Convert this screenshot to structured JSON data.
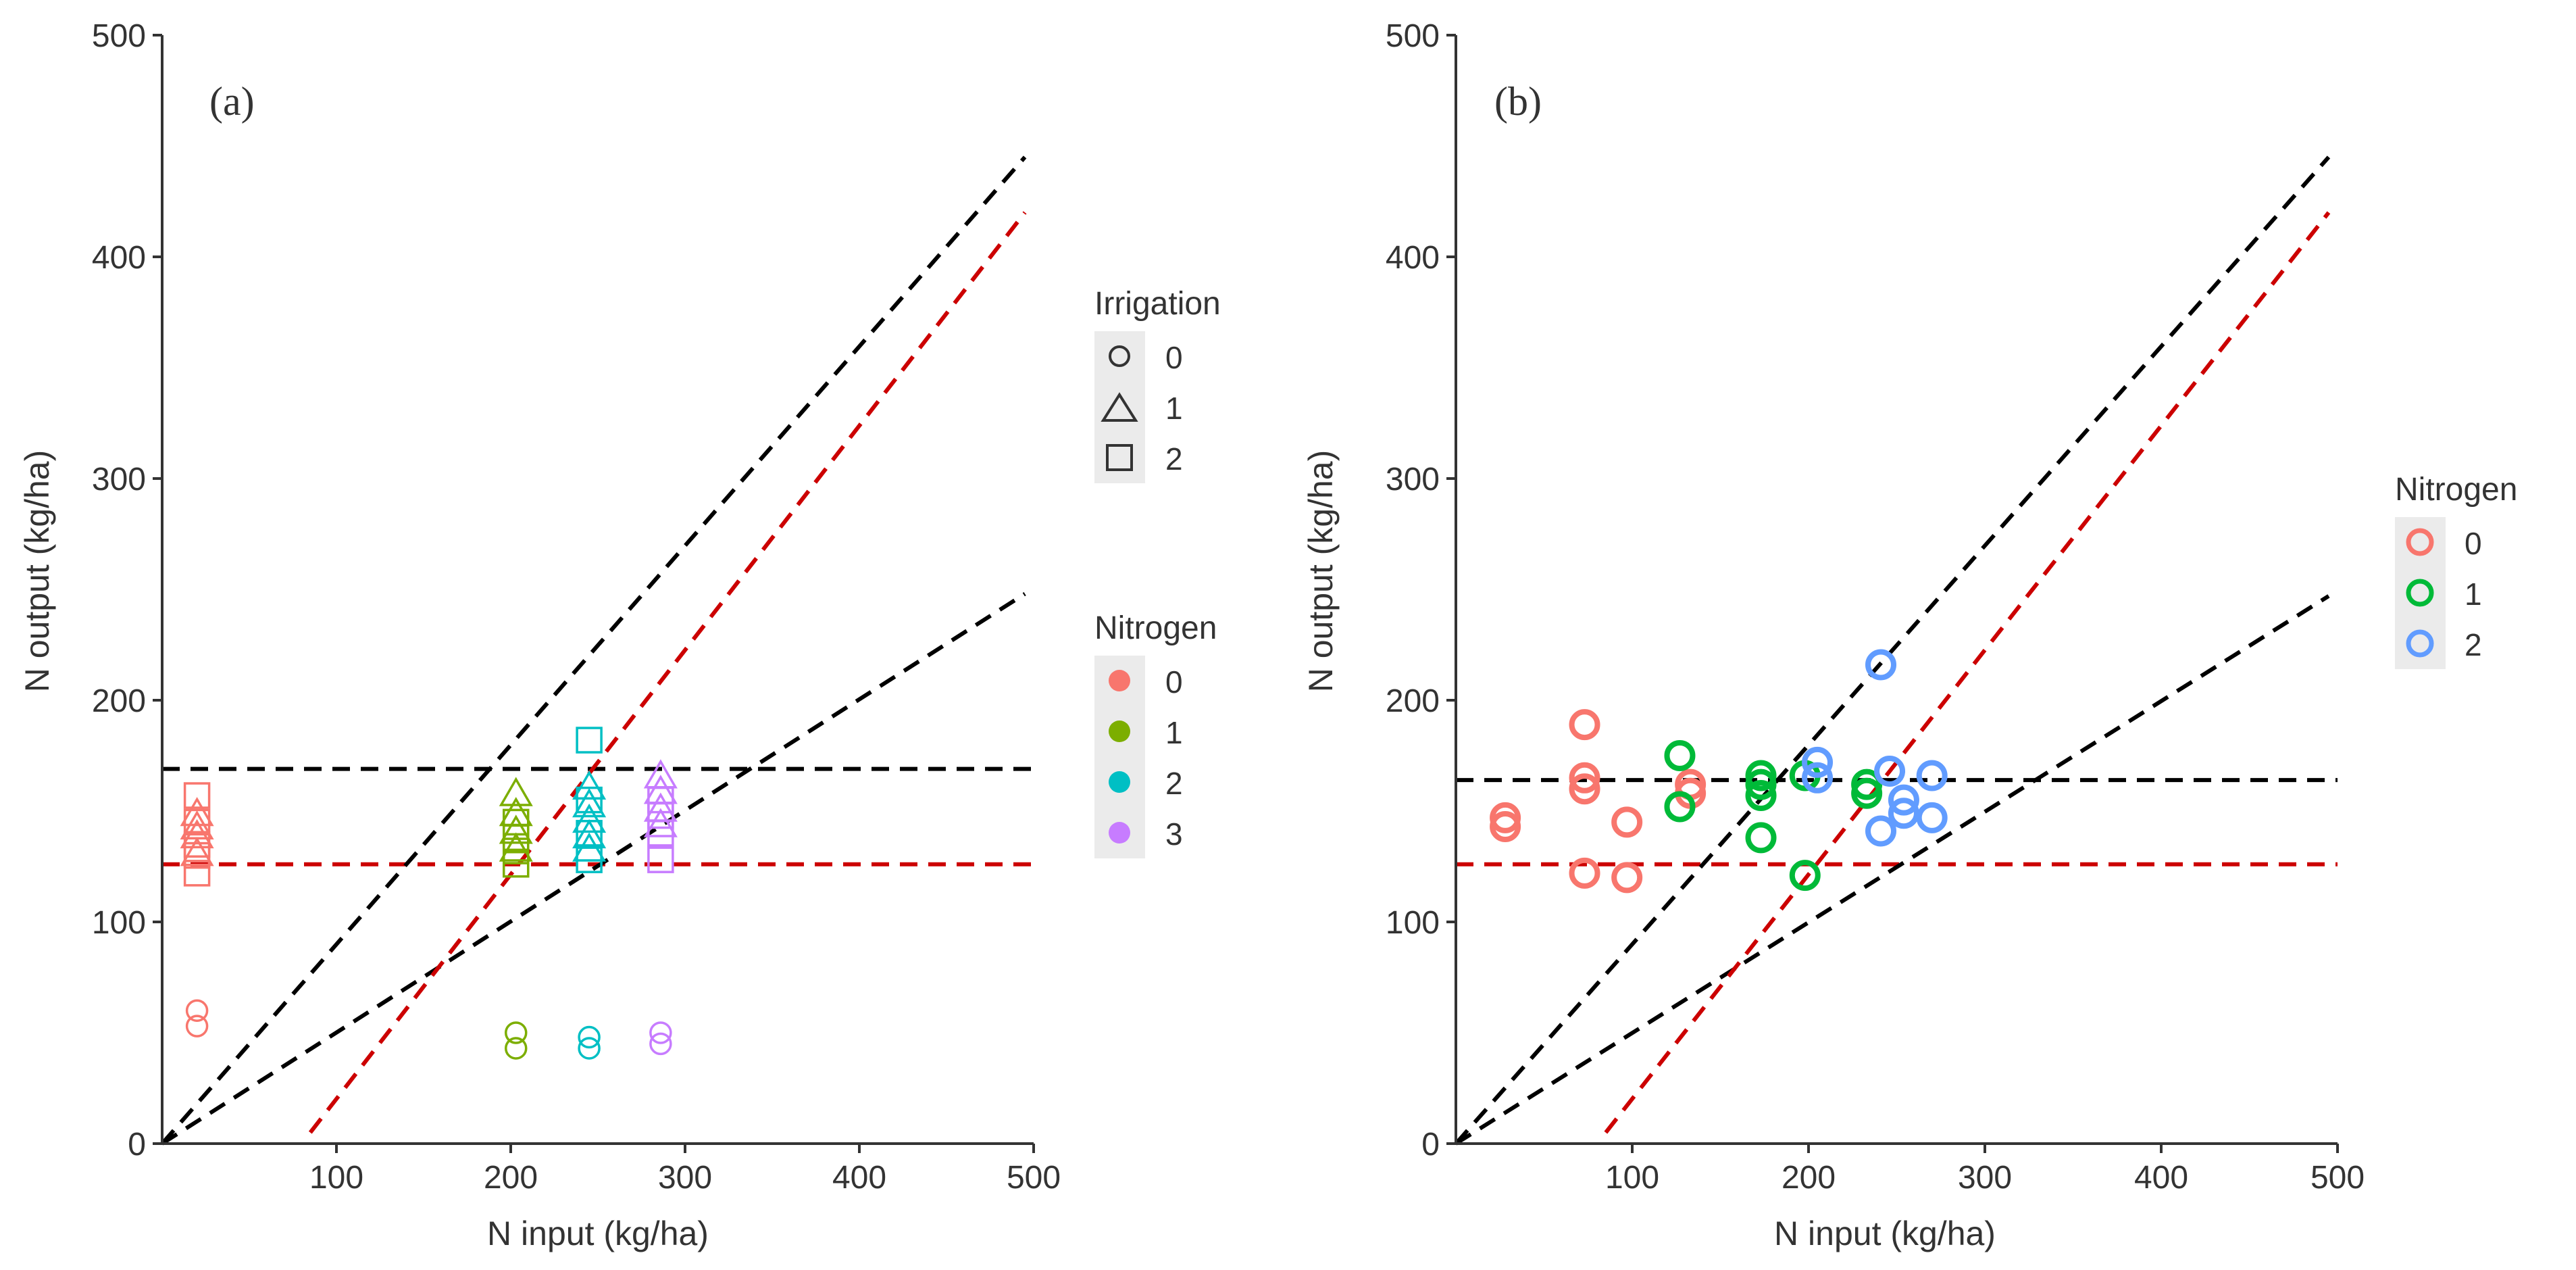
{
  "colors": {
    "n0": "#F8766D",
    "n1_a": "#7CAE00",
    "n2_a": "#00BFC4",
    "n3_a": "#C77CFF",
    "n1_b": "#00BA38",
    "n2_b": "#619CFF",
    "ref_black": "#000000",
    "ref_red": "#CC0000",
    "legend_key_bg": "#EBEBEB"
  },
  "chart_data": [
    {
      "type": "scatter",
      "panel_label": "(a)",
      "xlabel": "N input (kg/ha)",
      "ylabel": "N output (kg/ha)",
      "xlim": [
        0,
        500
      ],
      "ylim": [
        0,
        500
      ],
      "x_ticks": [
        100,
        200,
        300,
        400,
        500
      ],
      "x_tick_labels": [
        "100",
        "200",
        "300",
        "400",
        "500"
      ],
      "y_ticks": [
        0,
        100,
        200,
        300,
        400,
        500
      ],
      "y_tick_labels": [
        "0",
        "100",
        "200",
        "300",
        "400",
        "500"
      ],
      "grid": false,
      "legends": [
        {
          "title": "Irrigation",
          "entries": [
            {
              "label": "0",
              "shape": "circle"
            },
            {
              "label": "1",
              "shape": "triangle"
            },
            {
              "label": "2",
              "shape": "square"
            }
          ]
        },
        {
          "title": "Nitrogen",
          "entries": [
            {
              "label": "0",
              "color_key": "n0"
            },
            {
              "label": "1",
              "color_key": "n1_a"
            },
            {
              "label": "2",
              "color_key": "n2_a"
            },
            {
              "label": "3",
              "color_key": "n3_a"
            }
          ]
        }
      ],
      "series": [
        {
          "name": "N0 I0",
          "color_key": "n0",
          "shape": "circle",
          "points": [
            [
              20,
              60
            ],
            [
              20,
              53
            ]
          ]
        },
        {
          "name": "N0 I1",
          "color_key": "n0",
          "shape": "triangle",
          "points": [
            [
              20,
              148
            ],
            [
              20,
              142
            ],
            [
              20,
              138
            ],
            [
              20,
              130
            ]
          ]
        },
        {
          "name": "N0 I2",
          "color_key": "n0",
          "shape": "square",
          "points": [
            [
              20,
              157
            ],
            [
              20,
              145
            ],
            [
              20,
              135
            ],
            [
              20,
              130
            ],
            [
              20,
              122
            ]
          ]
        },
        {
          "name": "N1 I0",
          "color_key": "n1_a",
          "shape": "circle",
          "points": [
            [
              203,
              50
            ],
            [
              203,
              43
            ]
          ]
        },
        {
          "name": "N1 I1",
          "color_key": "n1_a",
          "shape": "triangle",
          "points": [
            [
              203,
              157
            ],
            [
              203,
              148
            ],
            [
              203,
              140
            ],
            [
              203,
              132
            ]
          ]
        },
        {
          "name": "N1 I2",
          "color_key": "n1_a",
          "shape": "square",
          "points": [
            [
              203,
              145
            ],
            [
              203,
              138
            ],
            [
              203,
              132
            ],
            [
              203,
              126
            ]
          ]
        },
        {
          "name": "N2 I0",
          "color_key": "n2_a",
          "shape": "circle",
          "points": [
            [
              245,
              48
            ],
            [
              245,
              43
            ]
          ]
        },
        {
          "name": "N2 I1",
          "color_key": "n2_a",
          "shape": "triangle",
          "points": [
            [
              245,
              160
            ],
            [
              245,
              152
            ],
            [
              245,
              145
            ],
            [
              245,
              138
            ],
            [
              245,
              132
            ]
          ]
        },
        {
          "name": "N2 I2",
          "color_key": "n2_a",
          "shape": "square",
          "points": [
            [
              245,
              182
            ],
            [
              245,
              155
            ],
            [
              245,
              140
            ],
            [
              245,
              128
            ]
          ]
        },
        {
          "name": "N3 I0",
          "color_key": "n3_a",
          "shape": "circle",
          "points": [
            [
              286,
              50
            ],
            [
              286,
              45
            ]
          ]
        },
        {
          "name": "N3 I1",
          "color_key": "n3_a",
          "shape": "triangle",
          "points": [
            [
              286,
              165
            ],
            [
              286,
              158
            ],
            [
              286,
              150
            ],
            [
              286,
              143
            ]
          ]
        },
        {
          "name": "N3 I2",
          "color_key": "n3_a",
          "shape": "square",
          "points": [
            [
              286,
              155
            ],
            [
              286,
              148
            ],
            [
              286,
              140
            ],
            [
              286,
              128
            ]
          ]
        }
      ],
      "reference_lines": [
        {
          "name": "horizontal-black",
          "color_key": "ref_black",
          "from": [
            0,
            169
          ],
          "to": [
            500,
            169
          ]
        },
        {
          "name": "horizontal-red",
          "color_key": "ref_red",
          "from": [
            0,
            126
          ],
          "to": [
            500,
            126
          ]
        },
        {
          "name": "diagonal-black-steep",
          "color_key": "ref_black",
          "from": [
            0,
            0
          ],
          "to": [
            495,
            445
          ]
        },
        {
          "name": "diagonal-black-shallow",
          "color_key": "ref_black",
          "from": [
            0,
            0
          ],
          "to": [
            495,
            248
          ]
        },
        {
          "name": "diagonal-red",
          "color_key": "ref_red",
          "from": [
            85,
            5
          ],
          "to": [
            495,
            420
          ]
        }
      ]
    },
    {
      "type": "scatter",
      "panel_label": "(b)",
      "xlabel": "N input (kg/ha)",
      "ylabel": "N output (kg/ha)",
      "xlim": [
        0,
        500
      ],
      "ylim": [
        0,
        500
      ],
      "x_ticks": [
        100,
        200,
        300,
        400,
        500
      ],
      "x_tick_labels": [
        "100",
        "200",
        "300",
        "400",
        "500"
      ],
      "y_ticks": [
        0,
        100,
        200,
        300,
        400,
        500
      ],
      "y_tick_labels": [
        "0",
        "100",
        "200",
        "300",
        "400",
        "500"
      ],
      "grid": false,
      "legends": [
        {
          "title": "Nitrogen",
          "entries": [
            {
              "label": "0",
              "color_key": "n0"
            },
            {
              "label": "1",
              "color_key": "n1_b"
            },
            {
              "label": "2",
              "color_key": "n2_b"
            }
          ]
        }
      ],
      "series": [
        {
          "name": "N0",
          "color_key": "n0",
          "shape": "circle",
          "points": [
            [
              28,
              147
            ],
            [
              28,
              143
            ],
            [
              73,
              189
            ],
            [
              73,
              165
            ],
            [
              73,
              160
            ],
            [
              73,
              122
            ],
            [
              97,
              145
            ],
            [
              97,
              120
            ],
            [
              133,
              162
            ],
            [
              133,
              158
            ]
          ]
        },
        {
          "name": "N1",
          "color_key": "n1_b",
          "shape": "circle",
          "points": [
            [
              127,
              175
            ],
            [
              127,
              152
            ],
            [
              173,
              166
            ],
            [
              173,
              162
            ],
            [
              173,
              157
            ],
            [
              173,
              138
            ],
            [
              198,
              121
            ],
            [
              198,
              166
            ],
            [
              233,
              162
            ],
            [
              233,
              158
            ]
          ]
        },
        {
          "name": "N2",
          "color_key": "n2_b",
          "shape": "circle",
          "points": [
            [
              205,
              172
            ],
            [
              205,
              165
            ],
            [
              241,
              216
            ],
            [
              246,
              168
            ],
            [
              241,
              141
            ],
            [
              254,
              155
            ],
            [
              254,
              149
            ],
            [
              270,
              166
            ],
            [
              270,
              147
            ]
          ]
        }
      ],
      "reference_lines": [
        {
          "name": "horizontal-black",
          "color_key": "ref_black",
          "from": [
            0,
            164
          ],
          "to": [
            500,
            164
          ]
        },
        {
          "name": "horizontal-red",
          "color_key": "ref_red",
          "from": [
            0,
            126
          ],
          "to": [
            500,
            126
          ]
        },
        {
          "name": "diagonal-black-steep",
          "color_key": "ref_black",
          "from": [
            0,
            0
          ],
          "to": [
            495,
            445
          ]
        },
        {
          "name": "diagonal-black-shallow",
          "color_key": "ref_black",
          "from": [
            0,
            0
          ],
          "to": [
            495,
            247
          ]
        },
        {
          "name": "diagonal-red",
          "color_key": "ref_red",
          "from": [
            85,
            5
          ],
          "to": [
            495,
            420
          ]
        }
      ]
    }
  ]
}
